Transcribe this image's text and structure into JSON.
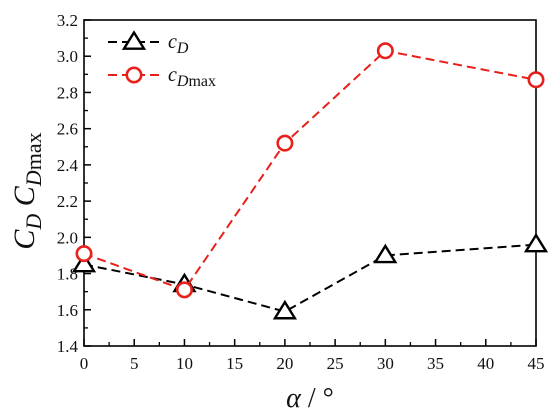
{
  "chart_data": {
    "type": "line",
    "x": [
      0,
      10,
      20,
      30,
      45
    ],
    "xlabel": {
      "symbol": "α",
      "unit": "°"
    },
    "ylabel": {
      "main": "C",
      "sub": "D",
      "main2": "C",
      "sub2": "Dmax"
    },
    "xlim": [
      0,
      45
    ],
    "ylim": [
      1.4,
      3.2
    ],
    "xticks": [
      "0",
      "5",
      "10",
      "15",
      "20",
      "25",
      "30",
      "35",
      "40",
      "45"
    ],
    "yticks": [
      "1.4",
      "1.6",
      "1.8",
      "2.0",
      "2.2",
      "2.4",
      "2.6",
      "2.8",
      "3.0",
      "3.2"
    ],
    "grid": false,
    "legend_position": "top-left",
    "series": [
      {
        "name": "C_D",
        "legend_main": "c",
        "legend_sub": "D",
        "marker": "triangle",
        "color": "#000000",
        "values": [
          1.85,
          1.74,
          1.59,
          1.9,
          1.96
        ]
      },
      {
        "name": "C_Dmax",
        "legend_main": "c",
        "legend_sub": "Dmax",
        "marker": "circle",
        "color": "#e8201b",
        "values": [
          1.91,
          1.71,
          2.52,
          3.03,
          2.87
        ]
      }
    ]
  }
}
